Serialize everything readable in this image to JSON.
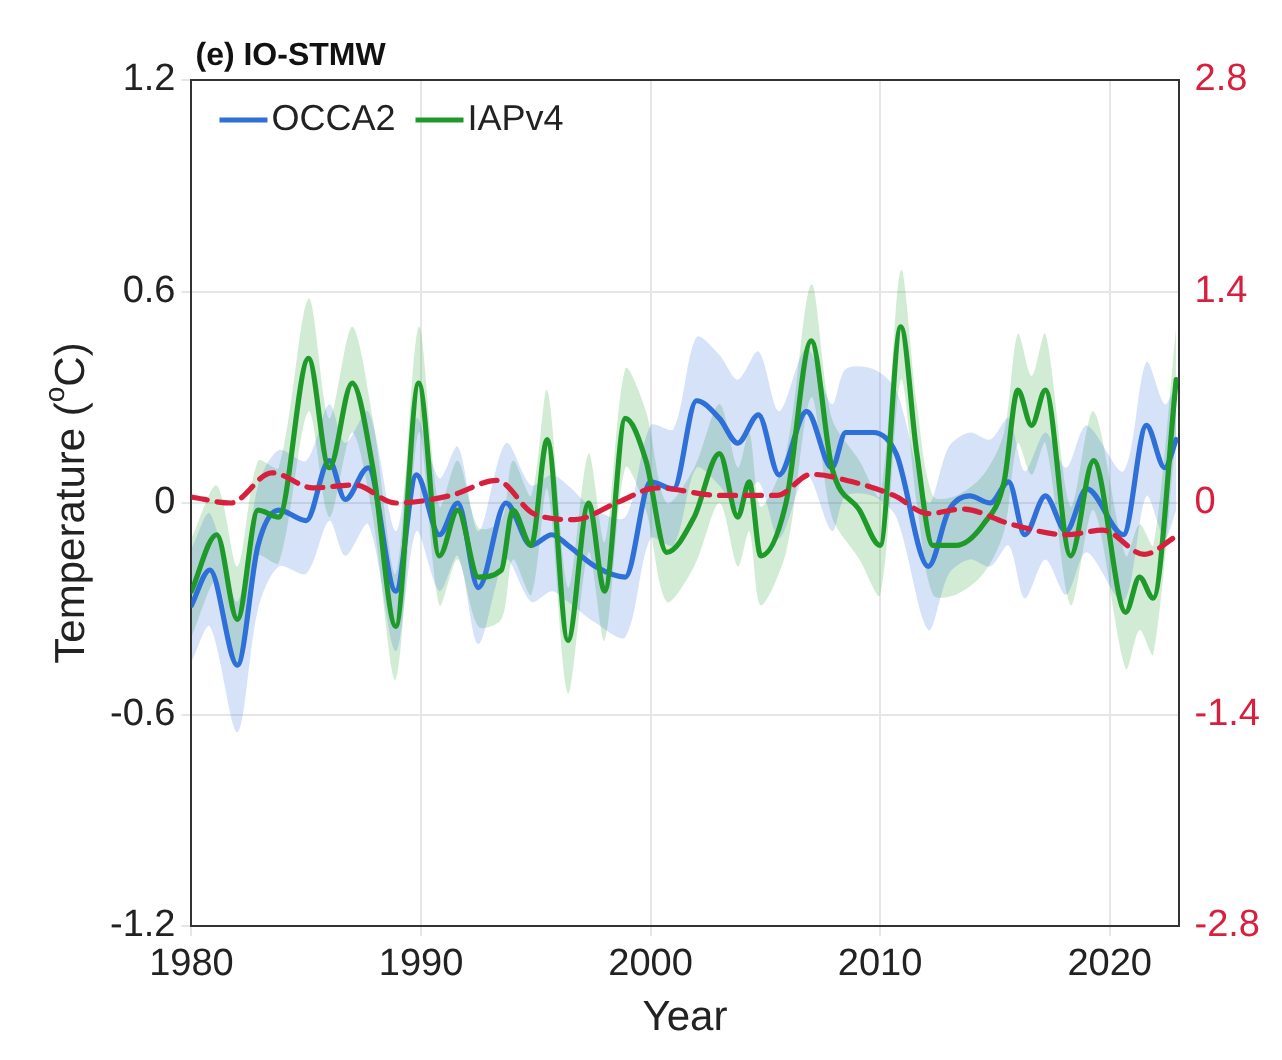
{
  "chart_data": {
    "type": "line",
    "title": "(e) IO-STMW",
    "xlabel": "Year",
    "ylabel": "Temperature ($^{o}$C)",
    "xlim": [
      1980,
      2023
    ],
    "xticks": [
      1980,
      1990,
      2000,
      2010,
      2020
    ],
    "ylim": [
      -1.2,
      1.2
    ],
    "yticks": [
      -1.2,
      -0.6,
      0,
      0.6,
      1.2
    ],
    "y2lim": [
      -2.8,
      2.8
    ],
    "y2ticks": [
      -2.8,
      -1.4,
      0,
      1.4,
      2.8
    ],
    "grid": true,
    "legend": "top left",
    "line_style": "solid",
    "marker": "none",
    "series": [
      {
        "name": "OCCA2",
        "color": "#2e6fd8",
        "x": [
          1980,
          1980.8,
          1982,
          1982.9,
          1983.8,
          1985,
          1986,
          1986.7,
          1987.7,
          1988.9,
          1989.8,
          1990.8,
          1991.6,
          1992.5,
          1993.7,
          1994.8,
          1995.7,
          1996.4,
          1997.6,
          1998.9,
          2000,
          2001,
          2002,
          2003,
          2003.8,
          2004.7,
          2005.6,
          2006.8,
          2007.9,
          2008.5,
          2009.7,
          2010.7,
          2012.1,
          2013,
          2013.9,
          2014.8,
          2015.6,
          2016.3,
          2017.2,
          2018.1,
          2019,
          2020.6,
          2021.6,
          2022.4,
          2022.9
        ],
        "values": [
          -0.29,
          -0.19,
          -0.46,
          -0.12,
          -0.02,
          -0.05,
          0.12,
          0.01,
          0.1,
          -0.25,
          0.08,
          -0.09,
          0,
          -0.24,
          0,
          -0.12,
          -0.09,
          -0.12,
          -0.18,
          -0.21,
          0.06,
          0.04,
          0.29,
          0.24,
          0.17,
          0.25,
          0.08,
          0.26,
          0.1,
          0.2,
          0.2,
          0.14,
          -0.18,
          -0.02,
          0.02,
          0,
          0.06,
          -0.09,
          0.02,
          -0.08,
          0.04,
          -0.09,
          0.22,
          0.1,
          0.18
        ],
        "lower": [
          -0.45,
          -0.35,
          -0.65,
          -0.3,
          -0.18,
          -0.2,
          -0.05,
          -0.15,
          -0.06,
          -0.42,
          -0.08,
          -0.25,
          -0.15,
          -0.4,
          -0.16,
          -0.28,
          -0.25,
          -0.28,
          -0.34,
          -0.38,
          -0.1,
          -0.12,
          0.1,
          0.05,
          -0.02,
          0.06,
          -0.1,
          0.08,
          -0.08,
          0.02,
          0.02,
          -0.04,
          -0.36,
          -0.2,
          -0.16,
          -0.18,
          -0.12,
          -0.27,
          -0.16,
          -0.26,
          -0.14,
          -0.28,
          0.02,
          -0.1,
          -0.02
        ],
        "upper": [
          -0.13,
          -0.03,
          -0.28,
          0.05,
          0.15,
          0.12,
          0.28,
          0.17,
          0.26,
          -0.08,
          0.24,
          0.07,
          0.16,
          -0.08,
          0.17,
          0.05,
          0.08,
          0.05,
          -0.02,
          -0.04,
          0.22,
          0.21,
          0.47,
          0.42,
          0.35,
          0.43,
          0.26,
          0.44,
          0.28,
          0.38,
          0.38,
          0.32,
          0,
          0.16,
          0.2,
          0.18,
          0.24,
          0.09,
          0.2,
          0.1,
          0.22,
          0.09,
          0.4,
          0.28,
          0.34
        ]
      },
      {
        "name": "IAPv4",
        "color": "#1f9a2a",
        "x": [
          1980,
          1981.1,
          1982,
          1982.9,
          1983.8,
          1985.1,
          1986,
          1987,
          1987.9,
          1988.9,
          1989.9,
          1990.8,
          1991.6,
          1992.5,
          1993.5,
          1994,
          1994.8,
          1995.5,
          1996.4,
          1997.3,
          1998,
          1998.9,
          1999.8,
          2000.7,
          2001.9,
          2003,
          2003.8,
          2004.3,
          2004.8,
          2005.9,
          2007,
          2007.9,
          2009.1,
          2010,
          2010.9,
          2011.6,
          2012.3,
          2013.3,
          2014.5,
          2015.4,
          2016,
          2016.6,
          2017.2,
          2018.3,
          2019.3,
          2020.7,
          2021.3,
          2021.9,
          2022.9
        ],
        "values": [
          -0.25,
          -0.09,
          -0.33,
          -0.02,
          -0.04,
          0.41,
          0.1,
          0.34,
          0.1,
          -0.35,
          0.34,
          -0.15,
          -0.02,
          -0.21,
          -0.19,
          -0.02,
          -0.12,
          0.18,
          -0.39,
          0,
          -0.25,
          0.24,
          0.12,
          -0.14,
          -0.04,
          0.14,
          -0.04,
          0.06,
          -0.15,
          0,
          0.46,
          0.1,
          -0.02,
          -0.12,
          0.5,
          0.14,
          -0.12,
          -0.12,
          -0.06,
          0.06,
          0.32,
          0.22,
          0.32,
          -0.15,
          0.12,
          -0.31,
          -0.21,
          -0.27,
          0.35
        ],
        "lower": [
          -0.38,
          -0.22,
          -0.46,
          -0.15,
          -0.17,
          0.26,
          -0.04,
          0.2,
          -0.04,
          -0.5,
          0.2,
          -0.29,
          -0.16,
          -0.35,
          -0.33,
          -0.16,
          -0.26,
          0.04,
          -0.54,
          -0.14,
          -0.39,
          0.1,
          -0.02,
          -0.28,
          -0.18,
          0,
          -0.18,
          -0.08,
          -0.29,
          -0.14,
          0.3,
          -0.04,
          -0.16,
          -0.26,
          0.35,
          0,
          -0.26,
          -0.26,
          -0.2,
          -0.08,
          0.17,
          0.08,
          0.17,
          -0.29,
          -0.02,
          -0.47,
          -0.36,
          -0.43,
          0.2
        ],
        "upper": [
          -0.1,
          0.05,
          -0.18,
          0.12,
          0.1,
          0.58,
          0.24,
          0.5,
          0.24,
          -0.2,
          0.5,
          -0.01,
          0.12,
          -0.07,
          -0.05,
          0.12,
          0.02,
          0.32,
          -0.24,
          0.14,
          -0.11,
          0.38,
          0.26,
          0,
          0.1,
          0.28,
          0.1,
          0.2,
          -0.01,
          0.14,
          0.62,
          0.24,
          0.12,
          0.02,
          0.66,
          0.28,
          0.02,
          0.02,
          0.08,
          0.2,
          0.48,
          0.36,
          0.48,
          -0.01,
          0.26,
          -0.15,
          -0.06,
          -0.12,
          0.5
        ]
      },
      {
        "color": "#d6203e",
        "axis": "y2",
        "line_style": "dashed",
        "x": [
          1980,
          1981.7,
          1983.5,
          1985.3,
          1987.1,
          1988.9,
          1991.3,
          1993.3,
          1994.9,
          1996.7,
          1998.5,
          2000.3,
          2003,
          2005.5,
          2007,
          2008.8,
          2010.6,
          2012.1,
          2013.6,
          2015.7,
          2018.1,
          2019.7,
          2021.5,
          2022.9
        ],
        "values": [
          0.04,
          0,
          0.2,
          0.1,
          0.12,
          0,
          0.05,
          0.15,
          -0.07,
          -0.11,
          0,
          0.1,
          0.05,
          0.05,
          0.19,
          0.14,
          0.05,
          -0.07,
          -0.04,
          -0.14,
          -0.21,
          -0.18,
          -0.34,
          -0.22
        ]
      }
    ]
  }
}
